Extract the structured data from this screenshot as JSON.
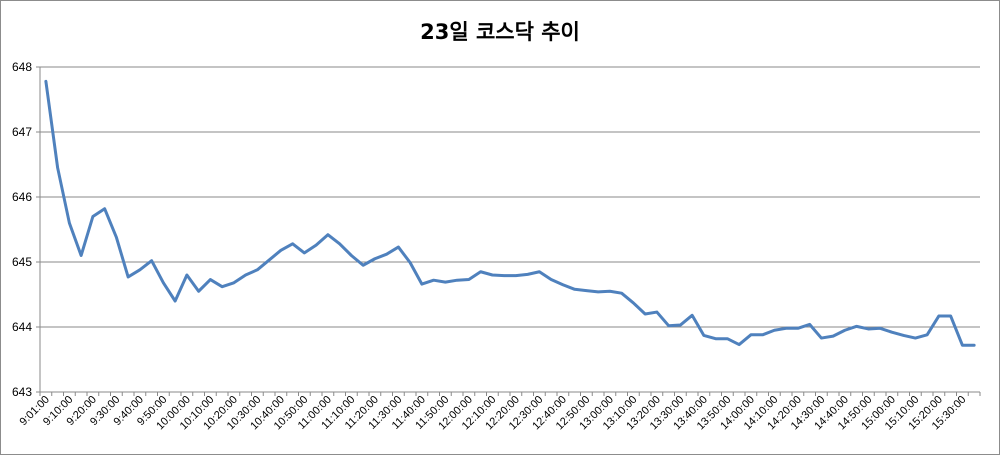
{
  "chart_data": {
    "type": "line",
    "title": "23일 코스닥 추이",
    "xlabel": "",
    "ylabel": "",
    "ylim": [
      643,
      648
    ],
    "yticks": [
      "643",
      "644",
      "645",
      "646",
      "647",
      "648"
    ],
    "grid": "horizontal",
    "legend": "none",
    "x_tick_labels": [
      "9:01:00",
      "9:10:00",
      "9:20:00",
      "9:30:00",
      "9:40:00",
      "9:50:00",
      "10:00:00",
      "10:10:00",
      "10:20:00",
      "10:30:00",
      "10:40:00",
      "10:50:00",
      "11:00:00",
      "11:10:00",
      "11:20:00",
      "11:30:00",
      "11:40:00",
      "11:50:00",
      "12:00:00",
      "12:10:00",
      "12:20:00",
      "12:30:00",
      "12:40:00",
      "12:50:00",
      "13:00:00",
      "13:10:00",
      "13:20:00",
      "13:30:00",
      "13:40:00",
      "13:50:00",
      "14:00:00",
      "14:10:00",
      "14:20:00",
      "14:30:00",
      "14:40:00",
      "14:50:00",
      "15:00:00",
      "15:10:00",
      "15:20:00",
      "15:30:00"
    ],
    "series": [
      {
        "color": "#4f81bd",
        "values": [
          647.78,
          646.45,
          645.6,
          645.1,
          645.7,
          645.82,
          645.38,
          644.77,
          644.88,
          645.02,
          644.68,
          644.4,
          644.8,
          644.55,
          644.73,
          644.62,
          644.68,
          644.8,
          644.88,
          645.03,
          645.18,
          645.28,
          645.14,
          645.26,
          645.42,
          645.28,
          645.1,
          644.95,
          645.05,
          645.12,
          645.23,
          644.99,
          644.66,
          644.72,
          644.69,
          644.72,
          644.73,
          644.85,
          644.8,
          644.79,
          644.79,
          644.81,
          644.85,
          644.73,
          644.65,
          644.58,
          644.56,
          644.54,
          644.55,
          644.52,
          644.37,
          644.2,
          644.23,
          644.02,
          644.03,
          644.18,
          643.87,
          643.82,
          643.82,
          643.73,
          643.88,
          643.88,
          643.95,
          643.98,
          643.98,
          644.04,
          643.83,
          643.86,
          643.95,
          644.01,
          643.97,
          643.98,
          643.92,
          643.87,
          643.83,
          643.88,
          644.17,
          644.17,
          643.72,
          643.72
        ]
      }
    ]
  }
}
